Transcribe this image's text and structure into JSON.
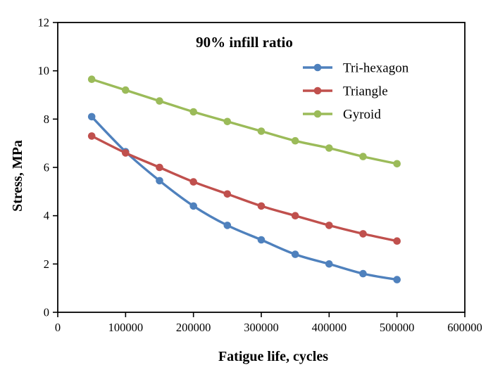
{
  "chart_data": {
    "type": "line",
    "title": "90% infill ratio",
    "xlabel": "Fatigue life, cycles",
    "ylabel": "Stress, MPa",
    "xlim": [
      0,
      600000
    ],
    "ylim": [
      0,
      12
    ],
    "x_ticks": [
      0,
      100000,
      200000,
      300000,
      400000,
      500000,
      600000
    ],
    "y_ticks": [
      0,
      2,
      4,
      6,
      8,
      10,
      12
    ],
    "grid": false,
    "legend_position": "inside upper right",
    "marker": "circle",
    "x": [
      50000,
      100000,
      150000,
      200000,
      250000,
      300000,
      350000,
      400000,
      450000,
      500000
    ],
    "series": [
      {
        "name": "Tri-hexagon",
        "color": "#4F81BD",
        "values": [
          8.1,
          6.65,
          5.45,
          4.4,
          3.6,
          3.0,
          2.4,
          2.0,
          1.6,
          1.35
        ]
      },
      {
        "name": "Triangle",
        "color": "#C0504D",
        "values": [
          7.3,
          6.6,
          6.0,
          5.4,
          4.9,
          4.4,
          4.0,
          3.6,
          3.25,
          2.95
        ]
      },
      {
        "name": "Gyroid",
        "color": "#9BBB59",
        "values": [
          9.65,
          9.2,
          8.75,
          8.3,
          7.9,
          7.5,
          7.1,
          6.8,
          6.45,
          6.15
        ]
      }
    ],
    "colors": {
      "axis": "#000000",
      "background": "#ffffff"
    }
  }
}
